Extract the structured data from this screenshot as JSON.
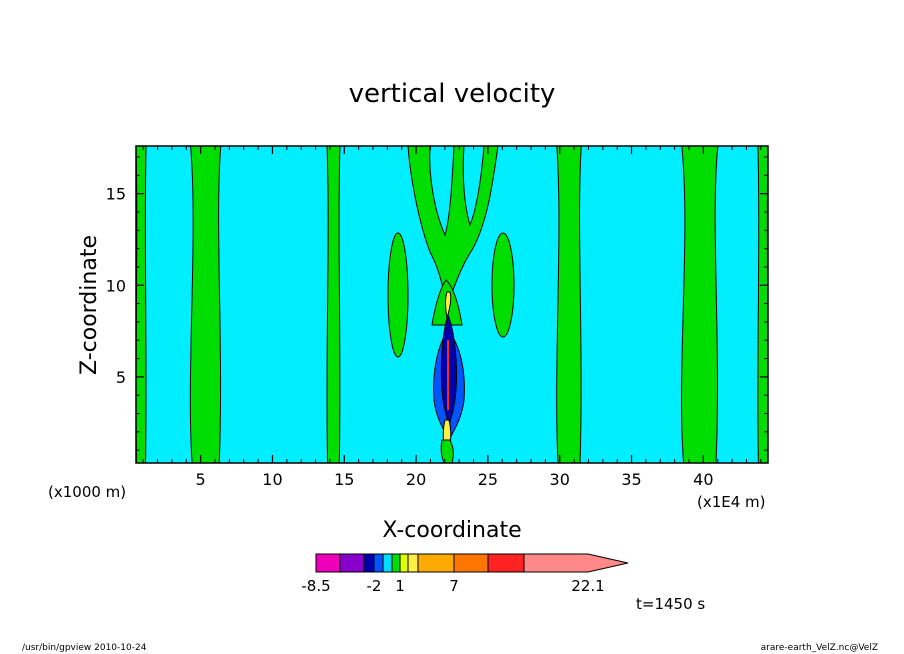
{
  "chart_data": {
    "type": "heatmap",
    "title": "vertical velocity",
    "xlabel": "X-coordinate",
    "ylabel": "Z-coordinate",
    "x_unit": "(x1E4 m)",
    "y_unit": "(x1000 m)",
    "xlim": [
      0.5,
      44.5
    ],
    "ylim": [
      0.3,
      17.6
    ],
    "x_ticks": [
      "5",
      "10",
      "15",
      "20",
      "25",
      "30",
      "35",
      "40"
    ],
    "x_tick_values": [
      5,
      10,
      15,
      20,
      25,
      30,
      35,
      40
    ],
    "y_ticks": [
      "5",
      "10",
      "15"
    ],
    "y_tick_values": [
      5,
      10,
      15
    ],
    "field_bands": {
      "background_color": "#00eeff",
      "band_color": "#00dd00",
      "x_bands": [
        {
          "x0": 0.5,
          "x1": 1.2
        },
        {
          "x0": 4.3,
          "x1": 6.4
        },
        {
          "x0": 13.8,
          "x1": 14.7
        },
        {
          "x0": 29.8,
          "x1": 31.5
        },
        {
          "x0": 38.5,
          "x1": 41.0
        },
        {
          "x0": 43.8,
          "x1": 44.5
        }
      ]
    },
    "colorbar": {
      "colors": [
        "#ee00bb",
        "#8800cc",
        "#0000aa",
        "#0055ff",
        "#00ddff",
        "#00dd00",
        "#ddff00",
        "#ffee44",
        "#ffaa00",
        "#ff7700",
        "#ff2222",
        "#ff8888"
      ],
      "labels": [
        "-8.5",
        "-2",
        "1",
        "7",
        "22.1"
      ]
    },
    "time_label": "t=1450 s"
  },
  "footer": {
    "left": "/usr/bin/gpview   2010-10-24",
    "right": "arare-earth_VelZ.nc@VelZ"
  }
}
